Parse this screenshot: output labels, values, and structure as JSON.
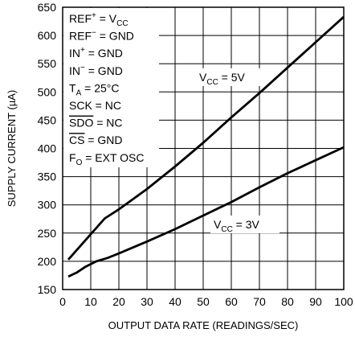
{
  "chart_data": {
    "type": "line",
    "title": "",
    "xlabel": "OUTPUT DATA RATE (READINGS/SEC)",
    "ylabel": "SUPPLY CURRENT (µA)",
    "xlim": [
      0,
      100
    ],
    "ylim": [
      150,
      650
    ],
    "x_ticks": [
      0,
      10,
      20,
      30,
      40,
      50,
      60,
      70,
      80,
      90,
      100
    ],
    "y_ticks": [
      150,
      200,
      250,
      300,
      350,
      400,
      450,
      500,
      550,
      600,
      650
    ],
    "grid": true,
    "series": [
      {
        "name": "VCC = 5V",
        "x": [
          2,
          5,
          10,
          15,
          20,
          30,
          40,
          50,
          60,
          70,
          80,
          90,
          100
        ],
        "y": [
          203,
          220,
          248,
          276,
          292,
          328,
          368,
          410,
          455,
          498,
          543,
          588,
          633
        ]
      },
      {
        "name": "VCC = 3V",
        "x": [
          2,
          5,
          8,
          12,
          16,
          20,
          30,
          40,
          50,
          60,
          70,
          80,
          90,
          100
        ],
        "y": [
          173,
          180,
          190,
          200,
          206,
          214,
          235,
          257,
          281,
          305,
          331,
          356,
          379,
          402
        ]
      }
    ],
    "annotations": {
      "series_labels": [
        {
          "text": "V",
          "sub": "CC",
          "rest": " = 5V"
        },
        {
          "text": "V",
          "sub": "CC",
          "rest": " = 3V"
        }
      ],
      "conditions": [
        {
          "text": "REF",
          "sup": "+",
          "rest": " = V",
          "sub": "CC"
        },
        {
          "text": "REF",
          "sup": "−",
          "rest": " = GND"
        },
        {
          "text": "IN",
          "sup": "+",
          "rest": " = GND"
        },
        {
          "text": "IN",
          "sup": "−",
          "rest": " = GND"
        },
        {
          "text": "T",
          "sub": "A",
          "rest": " = 25°C"
        },
        {
          "text": "SCK = NC"
        },
        {
          "text": "SDO",
          "overline": true,
          "rest": " = NC"
        },
        {
          "text": "CS",
          "overline": true,
          "rest": " = GND"
        },
        {
          "text": "F",
          "sub": "O",
          "rest": " = EXT OSC"
        }
      ]
    }
  }
}
